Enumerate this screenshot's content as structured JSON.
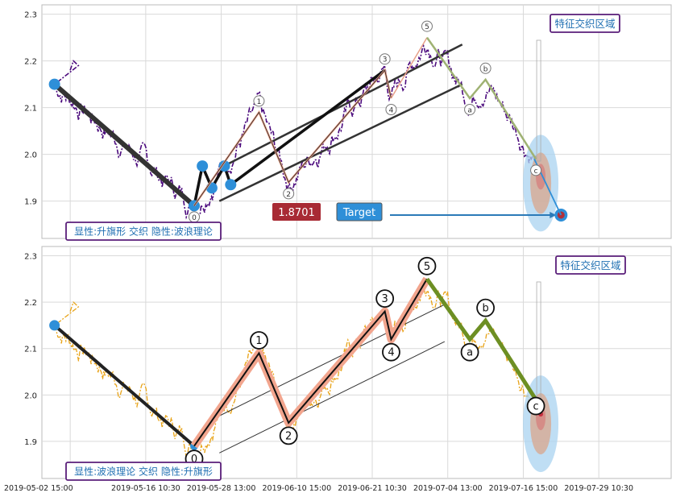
{
  "chart_data": {
    "type": "line",
    "x_ticks": [
      "2019-05-02 15:00",
      "2019-05-16 10:30",
      "2019-05-28 13:00",
      "2019-06-10 15:00",
      "2019-06-21 10:30",
      "2019-07-04 13:00",
      "2019-07-16 15:00",
      "2019-07-29 10:30"
    ],
    "panels": [
      {
        "ylim": [
          1.82,
          2.32
        ],
        "y_ticks": [
          1.9,
          2.0,
          2.1,
          2.2,
          2.3
        ],
        "pattern_label": "显性:升旗形 交织 隐性:波浪理论",
        "zone_label": "特征交织区域",
        "price_badge": "1.8701",
        "target_label": "Target",
        "price_color": "#4b0a7d",
        "wave_labels": [
          "0",
          "1",
          "2",
          "3",
          "4",
          "5",
          "a",
          "b",
          "c"
        ]
      },
      {
        "ylim": [
          1.82,
          2.32
        ],
        "y_ticks": [
          1.9,
          2.0,
          2.1,
          2.2,
          2.3
        ],
        "pattern_label": "显性:波浪理论 交织 隐性:升旗形",
        "zone_label": "特征交织区域",
        "price_color": "#e8a317",
        "wave_labels": [
          "0",
          "1",
          "2",
          "3",
          "4",
          "5",
          "a",
          "b",
          "c"
        ]
      }
    ],
    "pivots": [
      {
        "label": "start",
        "t": 0.02,
        "price": 2.15
      },
      {
        "label": "0",
        "t": 0.242,
        "price": 1.89
      },
      {
        "label": "1",
        "t": 0.345,
        "price": 2.09
      },
      {
        "label": "2",
        "t": 0.392,
        "price": 1.94
      },
      {
        "label": "3",
        "t": 0.545,
        "price": 2.18
      },
      {
        "label": "4",
        "t": 0.555,
        "price": 2.12
      },
      {
        "label": "5",
        "t": 0.612,
        "price": 2.25
      },
      {
        "label": "a",
        "t": 0.68,
        "price": 2.12
      },
      {
        "label": "b",
        "t": 0.705,
        "price": 2.16
      },
      {
        "label": "c",
        "t": 0.785,
        "price": 1.99
      },
      {
        "label": "target",
        "t": 0.825,
        "price": 1.8701
      }
    ]
  }
}
